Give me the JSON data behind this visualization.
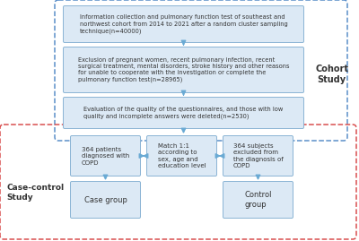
{
  "bg_color": "#ffffff",
  "box_fill": "#dce9f5",
  "box_edge": "#8ab4d4",
  "cohort_border_color": "#5b8fc9",
  "case_border_color": "#d94f4f",
  "arrow_color": "#6aaad4",
  "text_color": "#333333",
  "box1_text": "Information collection and pulmonary function test of southeast and\nnorthwest cohort from 2014 to 2021 after a random cluster sampling\ntechnique(n=40000)",
  "box2_text": "Exclusion of pregnant women, recent pulmonary infection, recent\nsurgical treatment, mental disorders, stroke history and other reasons\nfor unable to cooperate with the investigation or complete the\npulmonary function test(n=28965)",
  "box3_text": "Evaluation of the quality of the questionnaires, and those with low\nquality and incomplete answers were deleted(n=2530)",
  "box4_text": "364 patients\ndiagnosed with\nCOPD",
  "box5_text": "Match 1:1\naccording to\nsex, age and\neducation level",
  "box6_text": "364 subjects\nexcluded from\nthe diagnosis of\nCOPD",
  "box7_text": "Case group",
  "box8_text": "Control\ngroup",
  "label_cohort": "Cohort\nStudy",
  "label_case": "Case-control\nStudy"
}
